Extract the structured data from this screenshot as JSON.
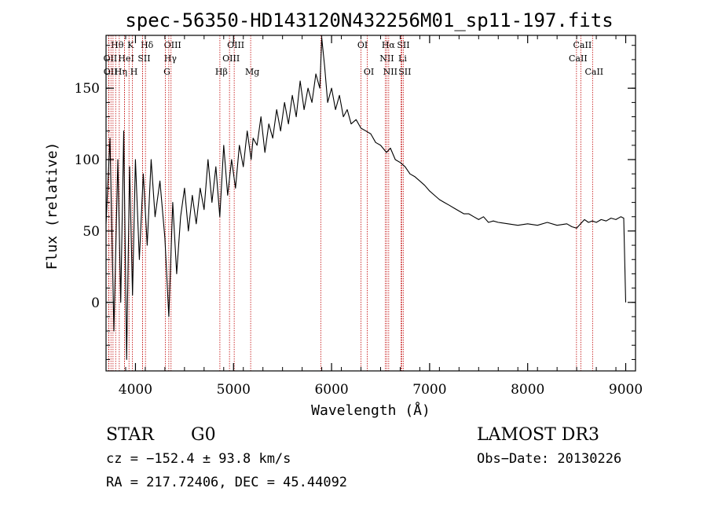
{
  "chart_data": {
    "type": "line",
    "title": "spec-56350-HD143120N432256M01_sp11-197.fits",
    "xlabel": "Wavelength (Å)",
    "ylabel": "Flux (relative)",
    "xlim": [
      3700,
      9100
    ],
    "ylim": [
      -48,
      187
    ],
    "x_ticks": [
      4000,
      5000,
      6000,
      7000,
      8000,
      9000
    ],
    "y_ticks": [
      0,
      50,
      100,
      150
    ],
    "x_minor_step": 200,
    "y_minor_step": 10,
    "series": [
      {
        "name": "spectrum",
        "x": [
          3700,
          3740,
          3780,
          3820,
          3850,
          3880,
          3910,
          3940,
          3970,
          4000,
          4040,
          4080,
          4120,
          4160,
          4200,
          4250,
          4300,
          4340,
          4380,
          4420,
          4460,
          4500,
          4540,
          4580,
          4620,
          4660,
          4700,
          4740,
          4780,
          4820,
          4860,
          4900,
          4940,
          4980,
          5020,
          5060,
          5100,
          5140,
          5180,
          5200,
          5240,
          5280,
          5320,
          5360,
          5400,
          5440,
          5480,
          5520,
          5560,
          5600,
          5640,
          5680,
          5720,
          5760,
          5800,
          5840,
          5880,
          5900,
          5930,
          5960,
          6000,
          6040,
          6080,
          6120,
          6160,
          6200,
          6250,
          6300,
          6350,
          6400,
          6450,
          6500,
          6560,
          6600,
          6650,
          6700,
          6750,
          6800,
          6850,
          6900,
          6950,
          7000,
          7050,
          7100,
          7150,
          7200,
          7250,
          7300,
          7350,
          7400,
          7450,
          7500,
          7550,
          7600,
          7650,
          7700,
          7800,
          7900,
          8000,
          8100,
          8200,
          8300,
          8400,
          8450,
          8500,
          8540,
          8580,
          8620,
          8660,
          8700,
          8750,
          8800,
          8850,
          8900,
          8950,
          8980,
          9000
        ],
        "y": [
          55,
          115,
          -20,
          100,
          0,
          120,
          -40,
          95,
          5,
          100,
          30,
          90,
          40,
          100,
          60,
          85,
          45,
          -10,
          70,
          20,
          60,
          80,
          50,
          75,
          55,
          80,
          65,
          100,
          70,
          95,
          60,
          110,
          75,
          100,
          80,
          110,
          95,
          120,
          100,
          115,
          110,
          130,
          105,
          125,
          115,
          135,
          120,
          140,
          125,
          145,
          130,
          155,
          135,
          150,
          140,
          160,
          150,
          185,
          165,
          140,
          150,
          135,
          145,
          130,
          135,
          125,
          128,
          122,
          120,
          118,
          112,
          110,
          105,
          108,
          100,
          98,
          95,
          90,
          88,
          85,
          82,
          78,
          75,
          72,
          70,
          68,
          66,
          64,
          62,
          62,
          60,
          58,
          60,
          56,
          57,
          56,
          55,
          54,
          55,
          54,
          56,
          54,
          55,
          53,
          52,
          55,
          58,
          56,
          57,
          56,
          58,
          57,
          59,
          58,
          60,
          59,
          0
        ]
      }
    ],
    "lines": [
      {
        "name": "Hθ",
        "wavelength": 3798,
        "row": 1
      },
      {
        "name": "K",
        "wavelength": 3934,
        "row": 1
      },
      {
        "name": "Hδ",
        "wavelength": 4102,
        "row": 1
      },
      {
        "name": "OIII",
        "wavelength": 4363,
        "row": 1
      },
      {
        "name": "OIII",
        "wavelength": 5007,
        "row": 1
      },
      {
        "name": "OI",
        "wavelength": 6300,
        "row": 1
      },
      {
        "name": "Hα",
        "wavelength": 6563,
        "row": 1
      },
      {
        "name": "SII",
        "wavelength": 6716,
        "row": 1
      },
      {
        "name": "CaII",
        "wavelength": 8542,
        "row": 1
      },
      {
        "name": "OII",
        "wavelength": 3727,
        "row": 2
      },
      {
        "name": "HeI",
        "wavelength": 3889,
        "row": 2
      },
      {
        "name": "SII",
        "wavelength": 4072,
        "row": 2
      },
      {
        "name": "Hγ",
        "wavelength": 4340,
        "row": 2
      },
      {
        "name": "OIII",
        "wavelength": 4959,
        "row": 2
      },
      {
        "name": "NII",
        "wavelength": 6548,
        "row": 2
      },
      {
        "name": "Li",
        "wavelength": 6708,
        "row": 2
      },
      {
        "name": "CaII",
        "wavelength": 8498,
        "row": 2
      },
      {
        "name": "OII",
        "wavelength": 3729,
        "row": 3
      },
      {
        "name": "Hη",
        "wavelength": 3835,
        "row": 3
      },
      {
        "name": "H",
        "wavelength": 3969,
        "row": 3
      },
      {
        "name": "G",
        "wavelength": 4305,
        "row": 3
      },
      {
        "name": "Hβ",
        "wavelength": 4861,
        "row": 3
      },
      {
        "name": "Mg",
        "wavelength": 5175,
        "row": 3
      },
      {
        "name": "OI",
        "wavelength": 6364,
        "row": 3
      },
      {
        "name": "NII",
        "wavelength": 6583,
        "row": 3
      },
      {
        "name": "SII",
        "wavelength": 6731,
        "row": 3
      },
      {
        "name": "CaII",
        "wavelength": 8662,
        "row": 3
      },
      {
        "name": "",
        "wavelength": 3750,
        "row": 0
      },
      {
        "name": "",
        "wavelength": 3771,
        "row": 0
      },
      {
        "name": "",
        "wavelength": 3889,
        "row": 0
      },
      {
        "name": "",
        "wavelength": 4072,
        "row": 0
      },
      {
        "name": "",
        "wavelength": 5890,
        "row": 0
      }
    ]
  },
  "info": {
    "class": "STAR",
    "subclass": "G0",
    "survey": "LAMOST DR3",
    "cz": "cz = −152.4 ± 93.8 km/s",
    "obs_date": "Obs−Date: 20130226",
    "coords": "RA = 217.72406, DEC =  45.44092"
  },
  "colors": {
    "spectrum": "#000000",
    "line_markers": "#c00000",
    "axes": "#000000"
  }
}
